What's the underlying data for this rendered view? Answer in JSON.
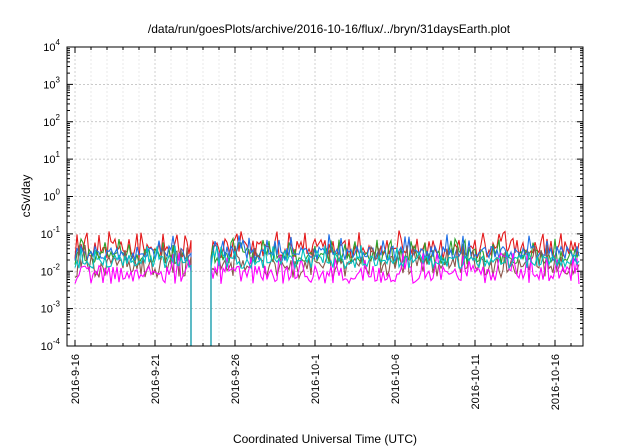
{
  "chart_data": {
    "type": "line",
    "title": "/data/run/goesPlots/archive/2016-10-16/flux/../bryn/31daysEarth.plot",
    "xlabel": "Coordinated Universal Time (UTC)",
    "ylabel": "cSv/day",
    "y_scale": "log",
    "ylim": [
      0.0001,
      10000
    ],
    "xlim": [
      "2016-09-15 12:00",
      "2016-10-17 18:00"
    ],
    "grid": true,
    "legend": "none",
    "x_ticks": [
      "2016-9-16",
      "2016-9-21",
      "2016-9-26",
      "2016-10-1",
      "2016-10-6",
      "2016-10-11",
      "2016-10-16"
    ],
    "y_ticks": [
      {
        "base": "10",
        "exp": "-4"
      },
      {
        "base": "10",
        "exp": "-3"
      },
      {
        "base": "10",
        "exp": "-2"
      },
      {
        "base": "10",
        "exp": "-1"
      },
      {
        "base": "10",
        "exp": "0"
      },
      {
        "base": "10",
        "exp": "1"
      },
      {
        "base": "10",
        "exp": "2"
      },
      {
        "base": "10",
        "exp": "3"
      },
      {
        "base": "10",
        "exp": "4"
      }
    ],
    "gap": {
      "start": "2016-09-23 06:00",
      "end": "2016-09-24 12:00"
    },
    "series": [
      {
        "color": "#e41a1c",
        "base": 0.04,
        "spread": 0.55,
        "peak": 0.1
      },
      {
        "color": "#2ca02c",
        "base": 0.025,
        "spread": 0.45,
        "peak": 0.06
      },
      {
        "color": "#1f6fe5",
        "base": 0.03,
        "spread": 0.4,
        "peak": 0.08
      },
      {
        "color": "#8c564b",
        "base": 0.013,
        "spread": 0.6,
        "peak": 0.04
      },
      {
        "color": "#ff00ff",
        "base": 0.008,
        "spread": 0.5,
        "peak": 0.025
      },
      {
        "color": "#00c0c0",
        "base": 0.018,
        "spread": 0.35,
        "peak": 0.04
      }
    ]
  }
}
